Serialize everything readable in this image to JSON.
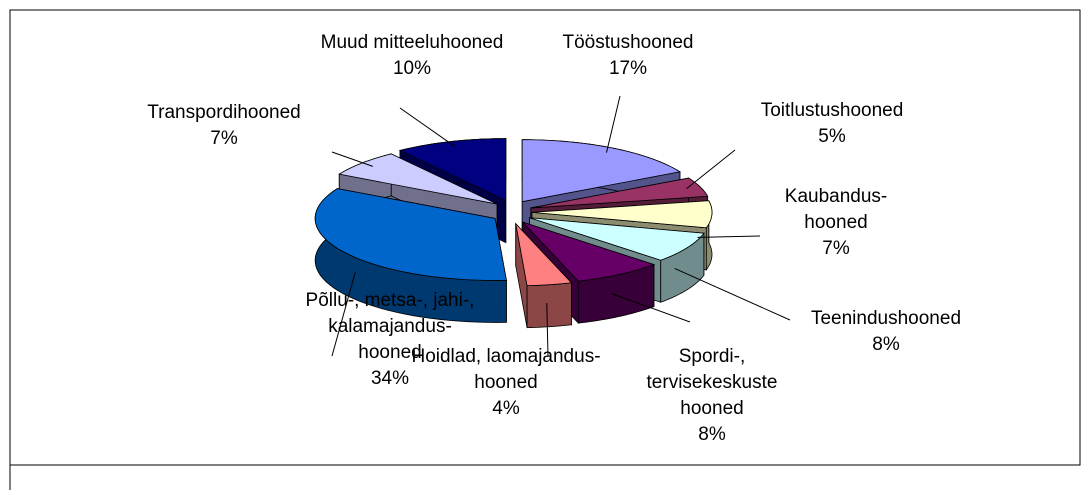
{
  "chart_data": {
    "type": "pie",
    "categories": [
      "Tööstushooned",
      "Toitlustushooned",
      "Kaubandus-\nhooned",
      "Teenindushooned",
      "Spordi-,\ntervisekeskuste\nhooned",
      "Hoidlad, laomajandus-\nhooned",
      "Põllu-, metsa-, jahi-,\nkalamajandus-\nhooned",
      "Transpordihooned",
      "Muud mitteeluhooned"
    ],
    "values": [
      17,
      5,
      7,
      8,
      8,
      4,
      34,
      7,
      10
    ],
    "value_labels": [
      "17%",
      "5%",
      "7%",
      "8%",
      "8%",
      "4%",
      "34%",
      "7%",
      "10%"
    ],
    "colors": [
      "#9999ff",
      "#993366",
      "#ffffcc",
      "#ccffff",
      "#660066",
      "#ff8080",
      "#0066cc",
      "#ccccff",
      "#000080"
    ]
  }
}
